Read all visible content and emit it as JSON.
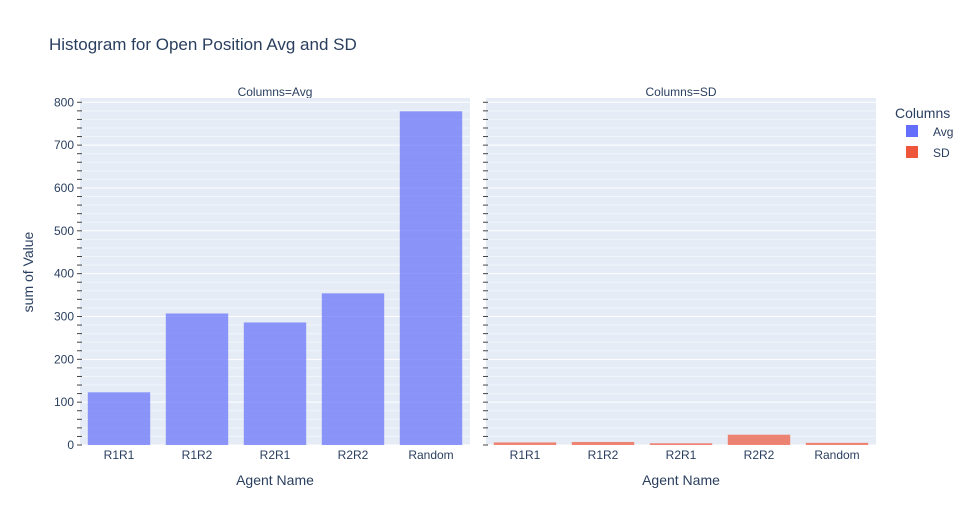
{
  "chart_data": {
    "type": "bar",
    "title": "Histogram for Open Position Avg and SD",
    "xlabel": "Agent Name",
    "ylabel": "sum of Value",
    "ylim": [
      0,
      810
    ],
    "y_ticks": [
      0,
      100,
      200,
      300,
      400,
      500,
      600,
      700,
      800
    ],
    "y_minor_tick_step": 20,
    "grid": true,
    "categories": [
      "R1R1",
      "R1R2",
      "R2R1",
      "R2R2",
      "Random"
    ],
    "legend": {
      "title": "Columns",
      "placement": "top-right"
    },
    "facets": [
      {
        "label": "Columns=Avg",
        "series": "Avg"
      },
      {
        "label": "Columns=SD",
        "series": "SD"
      }
    ],
    "series": [
      {
        "name": "Avg",
        "color": "#636efa",
        "values": [
          123,
          307,
          286,
          354,
          779
        ]
      },
      {
        "name": "SD",
        "color": "#ef553b",
        "values": [
          6,
          7,
          4,
          24,
          5
        ]
      }
    ]
  },
  "colors": {
    "plot_bg": "#e5ecf6",
    "grid": "#ffffff",
    "text": "#2a3f5f",
    "tick_text": "#2a3f5f"
  }
}
